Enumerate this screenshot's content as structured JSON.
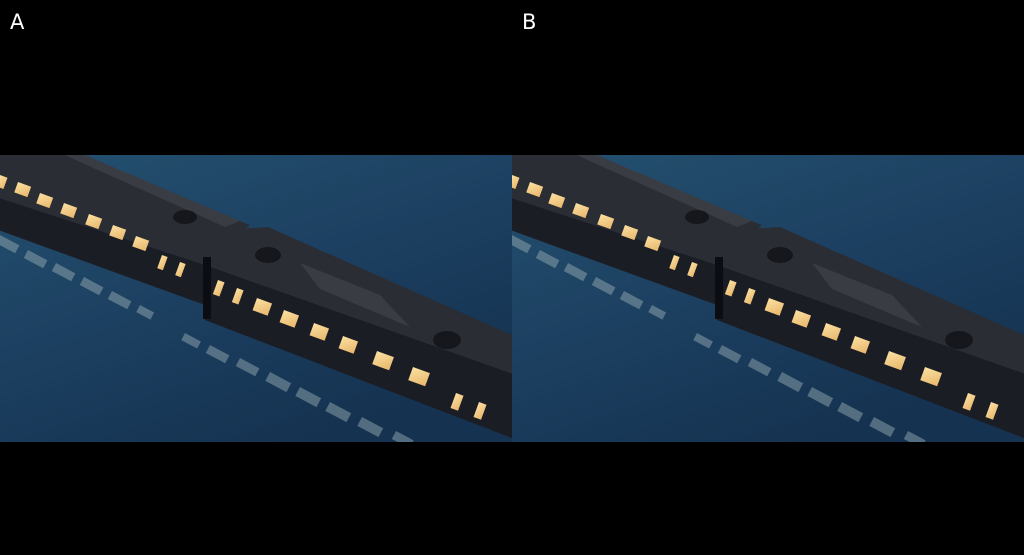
{
  "panels": [
    {
      "label": "A",
      "image": {
        "subject": "night-train-on-water",
        "water_color": "#1e4668",
        "train_color": "#1a1c24",
        "window_glow_color": "#f2c985"
      }
    },
    {
      "label": "B",
      "image": {
        "subject": "night-train-on-water",
        "water_color": "#1e4668",
        "train_color": "#1a1c24",
        "window_glow_color": "#f2c985"
      }
    }
  ]
}
